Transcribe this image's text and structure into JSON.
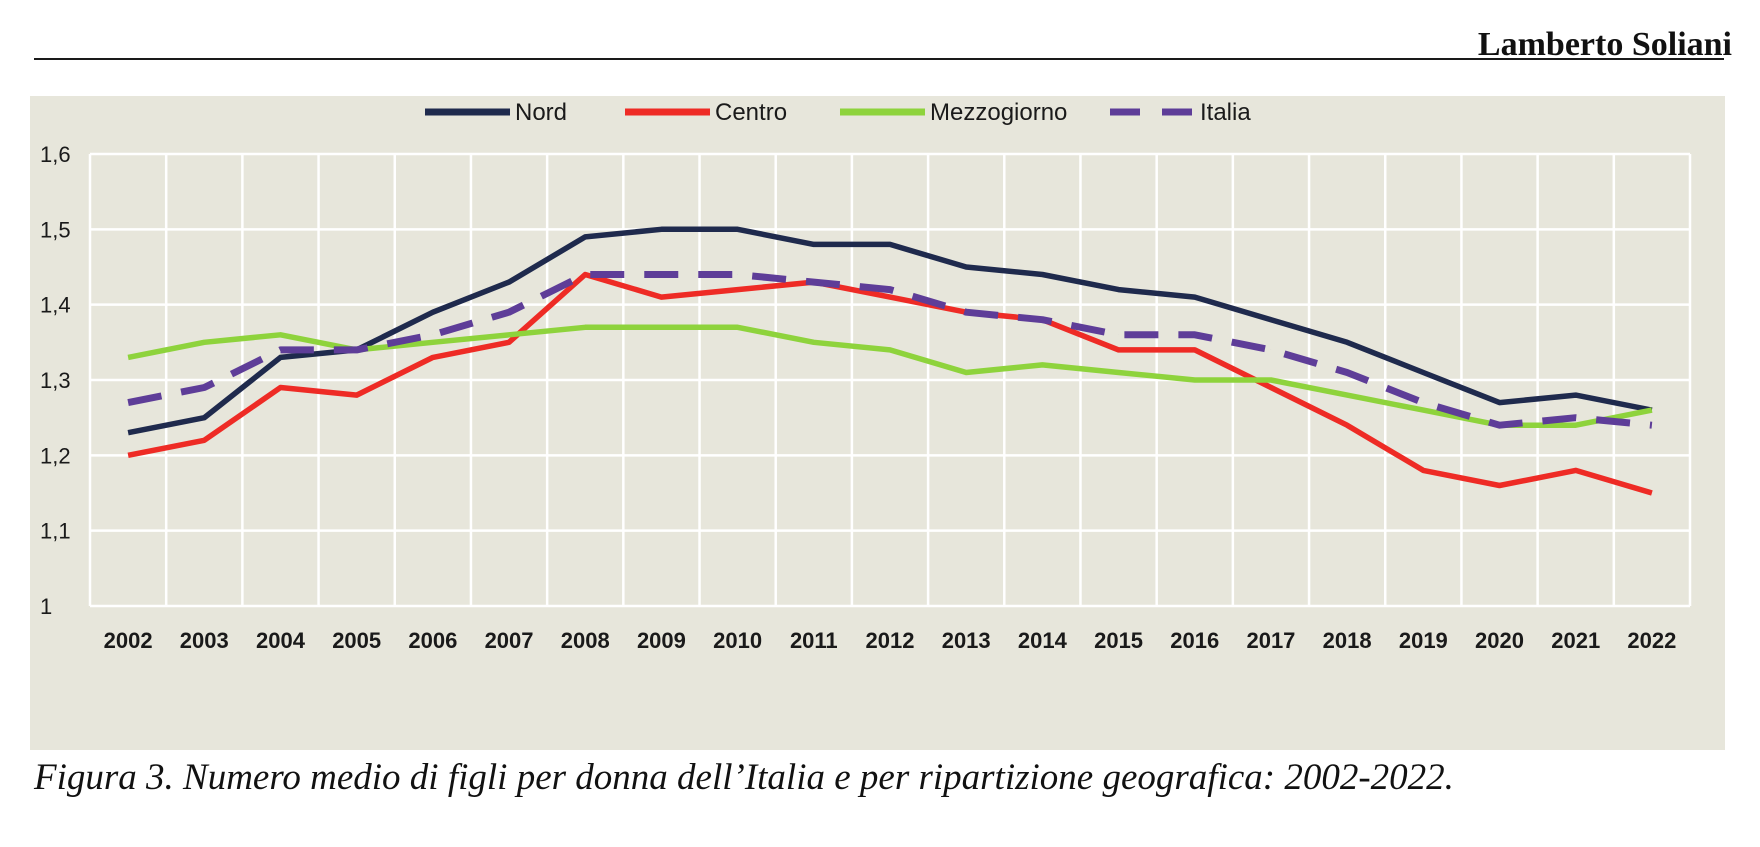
{
  "header": {
    "author": "Lamberto Soliani"
  },
  "caption": "Figura 3. Numero medio di figli per donna dell’Italia e per ripartizione geografica: 2002-2022.",
  "colors": {
    "background": "#e7e6db",
    "grid": "#ffffff",
    "Nord": "#1f2a4d",
    "Centro": "#ee2b25",
    "Mezzogiorno": "#8ed33c",
    "Italia": "#5e3d98"
  },
  "chart_data": {
    "type": "line",
    "x": [
      "2002",
      "2003",
      "2004",
      "2005",
      "2006",
      "2007",
      "2008",
      "2009",
      "2010",
      "2011",
      "2012",
      "2013",
      "2014",
      "2015",
      "2016",
      "2017",
      "2018",
      "2019",
      "2020",
      "2021",
      "2022"
    ],
    "yticks": [
      "1",
      "1,1",
      "1,2",
      "1,3",
      "1,4",
      "1,5",
      "1,6"
    ],
    "ylim": [
      1,
      1.6
    ],
    "grid": true,
    "legend_position": "top",
    "series": [
      {
        "name": "Nord",
        "style": "solid",
        "values": [
          1.23,
          1.25,
          1.33,
          1.34,
          1.39,
          1.43,
          1.49,
          1.5,
          1.5,
          1.48,
          1.48,
          1.45,
          1.44,
          1.42,
          1.41,
          1.38,
          1.35,
          1.31,
          1.27,
          1.28,
          1.26
        ]
      },
      {
        "name": "Centro",
        "style": "solid",
        "values": [
          1.2,
          1.22,
          1.29,
          1.28,
          1.33,
          1.35,
          1.44,
          1.41,
          1.42,
          1.43,
          1.41,
          1.39,
          1.38,
          1.34,
          1.34,
          1.29,
          1.24,
          1.18,
          1.16,
          1.18,
          1.15
        ]
      },
      {
        "name": "Mezzogiorno",
        "style": "solid",
        "values": [
          1.33,
          1.35,
          1.36,
          1.34,
          1.35,
          1.36,
          1.37,
          1.37,
          1.37,
          1.35,
          1.34,
          1.31,
          1.32,
          1.31,
          1.3,
          1.3,
          1.28,
          1.26,
          1.24,
          1.24,
          1.26
        ]
      },
      {
        "name": "Italia",
        "style": "dashed",
        "values": [
          1.27,
          1.29,
          1.34,
          1.34,
          1.36,
          1.39,
          1.44,
          1.44,
          1.44,
          1.43,
          1.42,
          1.39,
          1.38,
          1.36,
          1.36,
          1.34,
          1.31,
          1.27,
          1.24,
          1.25,
          1.24
        ]
      }
    ]
  }
}
